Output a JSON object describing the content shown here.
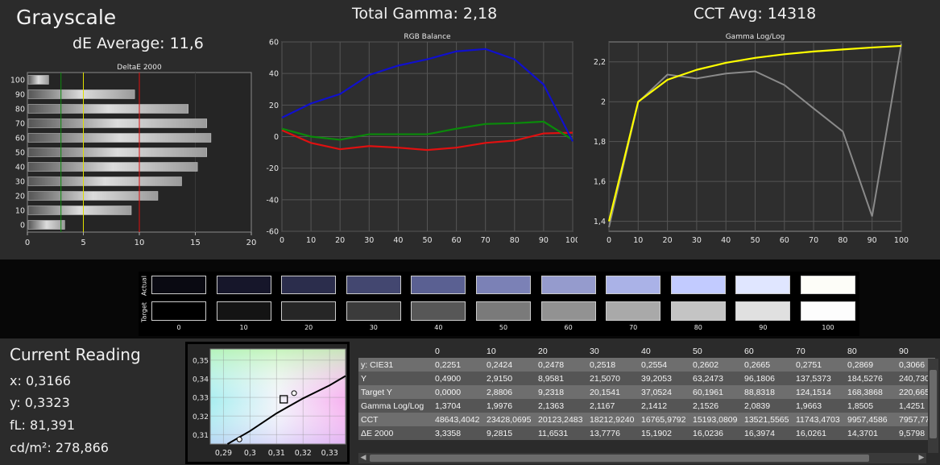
{
  "header": {
    "title": "Grayscale",
    "de_average": "dE Average: 11,6",
    "total_gamma": "Total Gamma: 2,18",
    "cct_avg": "CCT Avg: 14318"
  },
  "colors": {
    "rgb_red": "#e01010",
    "rgb_green": "#0a8a0a",
    "rgb_blue": "#1010cc",
    "gamma_target": "#ffff00",
    "gamma_measured": "#8a8a8a"
  },
  "chart_data": [
    {
      "type": "bar",
      "title": "DeltaE 2000",
      "orientation": "horizontal",
      "categories": [
        "0",
        "10",
        "20",
        "30",
        "40",
        "50",
        "60",
        "70",
        "80",
        "90",
        "100"
      ],
      "values": [
        3.3358,
        9.2815,
        11.6531,
        13.7776,
        15.1902,
        16.0236,
        16.3974,
        16.0261,
        14.3701,
        9.5798,
        1.9
      ],
      "xlim": [
        0,
        20
      ],
      "xticks": [
        "0",
        "5",
        "10",
        "15",
        "20"
      ],
      "yticks": [
        "0",
        "10",
        "20",
        "30",
        "40",
        "50",
        "60",
        "70",
        "80",
        "90",
        "100"
      ],
      "reference_lines": [
        {
          "x": 3,
          "color": "#0a8a0a"
        },
        {
          "x": 5,
          "color": "#e0e000"
        },
        {
          "x": 10,
          "color": "#e01010"
        }
      ]
    },
    {
      "type": "line",
      "title": "RGB Balance",
      "x": [
        0,
        10,
        20,
        30,
        40,
        50,
        60,
        70,
        80,
        90,
        100
      ],
      "series": [
        {
          "values": [
            4,
            -4,
            -8,
            -6,
            -7,
            -8.5,
            -7,
            -4,
            -2.5,
            2,
            2.5
          ],
          "color": "#e01010"
        },
        {
          "values": [
            5,
            0,
            -2,
            1.5,
            1.5,
            1.5,
            5,
            8,
            8.5,
            9.5,
            -2
          ],
          "color": "#0a8a0a"
        },
        {
          "values": [
            12,
            21,
            27,
            39,
            45,
            49,
            54,
            55.5,
            49,
            33,
            -3
          ],
          "color": "#1010cc"
        }
      ],
      "xlim": [
        0,
        100
      ],
      "ylim": [
        -60,
        60
      ],
      "xticks": [
        "0",
        "10",
        "20",
        "30",
        "40",
        "50",
        "60",
        "70",
        "80",
        "90",
        "100"
      ],
      "yticks": [
        "60",
        "40",
        "20",
        "0",
        "-20",
        "-40",
        "-60"
      ],
      "grid": true
    },
    {
      "type": "line",
      "title": "Gamma Log/Log",
      "x": [
        0,
        10,
        20,
        30,
        40,
        50,
        60,
        70,
        80,
        90,
        100
      ],
      "series": [
        {
          "values": [
            1.3704,
            1.9976,
            2.1363,
            2.1167,
            2.1412,
            2.1526,
            2.0839,
            1.9663,
            1.8505,
            1.4251,
            2.29
          ],
          "color": "#8a8a8a"
        },
        {
          "values": [
            1.4,
            2.0,
            2.11,
            2.16,
            2.195,
            2.22,
            2.238,
            2.252,
            2.262,
            2.272,
            2.28
          ],
          "color": "#ffff00"
        }
      ],
      "xlim": [
        0,
        100
      ],
      "ylim": [
        1.35,
        2.3
      ],
      "xticks": [
        "0",
        "10",
        "20",
        "30",
        "40",
        "50",
        "60",
        "70",
        "80",
        "90",
        "100"
      ],
      "yticks": [
        "2,2",
        "2",
        "1,8",
        "1,6",
        "1,4"
      ],
      "grid": true
    },
    {
      "type": "scatter",
      "title": "",
      "xlim": [
        0.285,
        0.336
      ],
      "ylim": [
        0.305,
        0.356
      ],
      "xticks": [
        "0,29",
        "0,3",
        "0,31",
        "0,32",
        "0,33"
      ],
      "yticks": [
        "0,35",
        "0,34",
        "0,33",
        "0,32",
        "0,31"
      ],
      "points": [
        {
          "x": 0.296,
          "y": 0.3075,
          "marker": "circle"
        },
        {
          "x": 0.3166,
          "y": 0.3323,
          "marker": "circle"
        },
        {
          "x": 0.3127,
          "y": 0.329,
          "marker": "square"
        }
      ],
      "locus": [
        [
          0.2915,
          0.305
        ],
        [
          0.3,
          0.312
        ],
        [
          0.31,
          0.3215
        ],
        [
          0.32,
          0.3295
        ],
        [
          0.33,
          0.3365
        ],
        [
          0.336,
          0.3415
        ]
      ]
    }
  ],
  "swatches": {
    "actual_label": "Actual",
    "target_label": "Target",
    "items": [
      {
        "label": "0",
        "actual": "#0a0a12",
        "target": "#000000"
      },
      {
        "label": "10",
        "actual": "#16162a",
        "target": "#141414"
      },
      {
        "label": "20",
        "actual": "#2b2d4c",
        "target": "#262626"
      },
      {
        "label": "30",
        "actual": "#434770",
        "target": "#3b3b3b"
      },
      {
        "label": "40",
        "actual": "#5a6092",
        "target": "#575757"
      },
      {
        "label": "50",
        "actual": "#7b81b6",
        "target": "#7a7a7a"
      },
      {
        "label": "60",
        "actual": "#959bcd",
        "target": "#929292"
      },
      {
        "label": "70",
        "actual": "#aab2e7",
        "target": "#a9a9a9"
      },
      {
        "label": "80",
        "actual": "#c2cbff",
        "target": "#c4c4c4"
      },
      {
        "label": "90",
        "actual": "#e0e6ff",
        "target": "#e0e0e0"
      },
      {
        "label": "100",
        "actual": "#fdfdf8",
        "target": "#fdfdfd"
      }
    ]
  },
  "current_reading": {
    "title": "Current Reading",
    "x": "x: 0,3166",
    "y": "y: 0,3323",
    "fl": "fL: 81,391",
    "cdm2": "cd/m²: 278,866"
  },
  "table": {
    "headers": [
      "",
      "0",
      "10",
      "20",
      "30",
      "40",
      "50",
      "60",
      "70",
      "80",
      "90"
    ],
    "rows": [
      [
        "y: CIE31",
        "0,2251",
        "0,2424",
        "0,2478",
        "0,2518",
        "0,2554",
        "0,2602",
        "0,2665",
        "0,2751",
        "0,2869",
        "0,3066"
      ],
      [
        "Y",
        "0,4900",
        "2,9150",
        "8,9581",
        "21,5070",
        "39,2053",
        "63,2473",
        "96,1806",
        "137,5373",
        "184,5276",
        "240,730"
      ],
      [
        "Target Y",
        "0,0000",
        "2,8806",
        "9,2318",
        "20,1541",
        "37,0524",
        "60,1961",
        "88,8318",
        "124,1514",
        "168,3868",
        "220,665"
      ],
      [
        "Gamma Log/Log",
        "1,3704",
        "1,9976",
        "2,1363",
        "2,1167",
        "2,1412",
        "2,1526",
        "2,0839",
        "1,9663",
        "1,8505",
        "1,4251"
      ],
      [
        "CCT",
        "48643,4042",
        "23428,0695",
        "20123,2483",
        "18212,9240",
        "16765,9792",
        "15193,0809",
        "13521,5565",
        "11743,4703",
        "9957,4586",
        "7957,77"
      ],
      [
        "ΔE 2000",
        "3,3358",
        "9,2815",
        "11,6531",
        "13,7776",
        "15,1902",
        "16,0236",
        "16,3974",
        "16,0261",
        "14,3701",
        "9,5798"
      ]
    ]
  }
}
